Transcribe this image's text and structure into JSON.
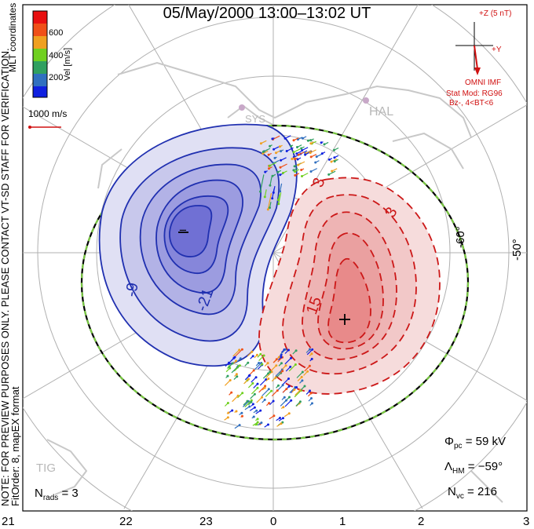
{
  "title": "05/May/2000 13:00–13:02 UT",
  "colorbar": {
    "label": "Vel [m/s]",
    "ticks": [
      "600",
      "400",
      "200"
    ],
    "colors": [
      "#e81010",
      "#f07a18",
      "#f0c020",
      "#70d020",
      "#30a060",
      "#3070c0",
      "#1020e0"
    ]
  },
  "coordinates_label": "MLT coordinates",
  "vector_scale_label": "1000 m/s",
  "imf": {
    "axis_z": "+Z (5 nT)",
    "axis_y": "+Y",
    "source": "OMNI IMF",
    "stat_mod": "Stat Mod: RG96",
    "condition": "Bz-, 4<BT<6"
  },
  "note": "NOTE: FOR PREVIEW PURPOSES ONLY. PLEASE CONTACT VT-SD STAFF FOR VERIFICATION.",
  "fit_info": "FitOrder: 8, mapEX format",
  "stations": [
    "HAL",
    "SYS",
    "TIG"
  ],
  "contour_labels": {
    "negative": [
      "-9",
      "-21",
      "−"
    ],
    "positive": [
      "3",
      "3",
      "15",
      "+"
    ]
  },
  "lat_labels": [
    "-50°",
    "-60°"
  ],
  "stats": {
    "phi_pc": {
      "symbol": "Φ",
      "sub": "pc",
      "value": "= 59 kV"
    },
    "lambda_hm": {
      "symbol": "Λ",
      "sub": "HM",
      "value": "= −59°"
    },
    "n_vc": {
      "symbol": "N",
      "sub": "vc",
      "value": "= 216"
    },
    "n_rads": {
      "symbol": "N",
      "sub": "rads",
      "value": "= 3"
    }
  },
  "mlt_ticks": [
    "21",
    "22",
    "23",
    "0",
    "1",
    "2",
    "3"
  ],
  "colors": {
    "negative_cell": "#2030b0",
    "positive_cell": "#cc1818",
    "hmb_boundary": "#7ac943",
    "grid": "#b0b0b0",
    "coast": "#c8c8c8"
  }
}
